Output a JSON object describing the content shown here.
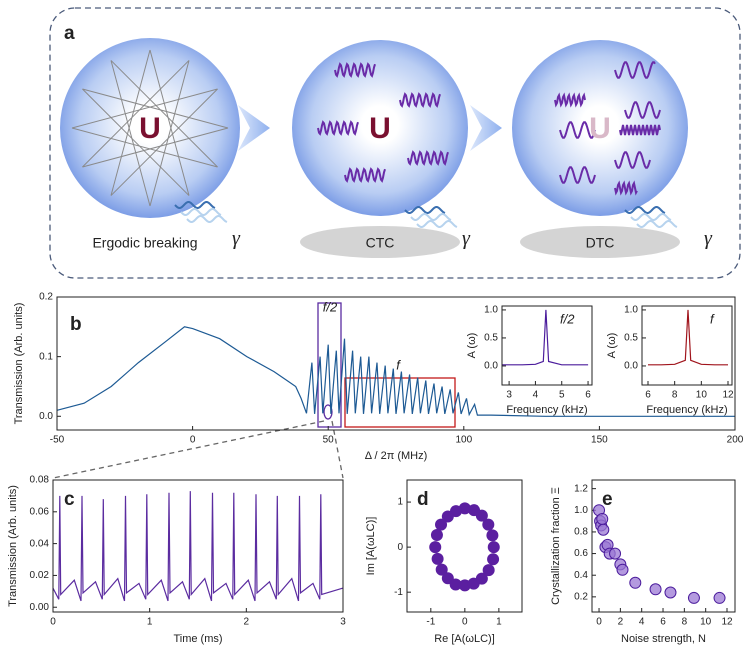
{
  "diagram": {
    "panel": "a",
    "stages": [
      {
        "label": "Ergodic breaking",
        "symbol": "U",
        "rate": "γ"
      },
      {
        "label": "CTC",
        "symbol": "U",
        "rate": "γ"
      },
      {
        "label": "DTC",
        "symbol": "U",
        "rate": "γ"
      }
    ]
  },
  "chart_data": [
    {
      "type": "line",
      "panel": "b",
      "x_label": "Δ / 2π (MHz)",
      "y_label": "Transmission (Arb. units)",
      "annotations": [
        "f/2",
        "f"
      ],
      "xlim": [
        -50,
        200
      ],
      "xticks": [
        -50,
        0,
        50,
        100,
        150,
        200
      ],
      "ylim": [
        -0.023,
        0.2
      ],
      "yticks": [
        {
          "value": 0,
          "label": "0.0"
        },
        {
          "value": 0.1,
          "label": "0.1"
        },
        {
          "value": 0.2,
          "label": "0.2"
        }
      ],
      "series": [
        {
          "color": "#1d5a94",
          "x": [
            -50,
            -40,
            -30,
            -20,
            -10,
            -3,
            0,
            10,
            20,
            30,
            38,
            40,
            42,
            44,
            45,
            47,
            48,
            50,
            51,
            53,
            54,
            56,
            57,
            59,
            60,
            62,
            63,
            65,
            66,
            68,
            69,
            71,
            72,
            74,
            75,
            77,
            78,
            80,
            81,
            83,
            84,
            86,
            87,
            89,
            90,
            92,
            93,
            95,
            96,
            98,
            99,
            101,
            102,
            104,
            105,
            110,
            130,
            160,
            200
          ],
          "values": [
            0.01,
            0.022,
            0.05,
            0.09,
            0.125,
            0.15,
            0.147,
            0.13,
            0.1,
            0.075,
            0.05,
            0.03,
            0.005,
            0.09,
            0.004,
            0.1,
            0.005,
            0.12,
            0.004,
            0.11,
            0.005,
            0.13,
            0.004,
            0.11,
            0.005,
            0.1,
            0.004,
            0.1,
            0.005,
            0.09,
            0.004,
            0.085,
            0.005,
            0.08,
            0.004,
            0.075,
            0.005,
            0.07,
            0.004,
            0.065,
            0.005,
            0.06,
            0.004,
            0.055,
            0.005,
            0.05,
            0.004,
            0.045,
            0.005,
            0.04,
            0.004,
            0.03,
            0.003,
            0.02,
            0.002,
            0.002,
            0.0,
            0.0,
            0.0
          ]
        }
      ]
    },
    {
      "type": "line",
      "panel_annotation": "f/2",
      "x_label": "Frequency (kHz)",
      "y_label": "A (ω)",
      "xlim": [
        2.73,
        6.15
      ],
      "xticks": [
        3,
        4,
        5,
        6
      ],
      "ylim": [
        -0.34,
        1.07
      ],
      "yticks": [
        {
          "value": 0,
          "label": "0.0"
        },
        {
          "value": 0.5,
          "label": "0.5"
        },
        {
          "value": 1,
          "label": "1.0"
        }
      ],
      "series": [
        {
          "color": "#4b1c9c",
          "x": [
            2.73,
            3,
            3.5,
            4,
            4.3,
            4.4,
            4.5,
            5,
            5.5,
            6
          ],
          "values": [
            0.02,
            0.02,
            0.02,
            0.03,
            0.08,
            1.0,
            0.08,
            0.02,
            0.02,
            0.02
          ]
        }
      ]
    },
    {
      "type": "line",
      "panel_annotation": "f",
      "x_label": "Frequency (kHz)",
      "y_label": "A (ω)",
      "xlim": [
        5.55,
        12.3
      ],
      "xticks": [
        6,
        8,
        10,
        12
      ],
      "ylim": [
        -0.34,
        1.07
      ],
      "yticks": [
        {
          "value": 0,
          "label": "0.0"
        },
        {
          "value": 0.5,
          "label": "0.5"
        },
        {
          "value": 1,
          "label": "1.0"
        }
      ],
      "series": [
        {
          "color": "#a0141c",
          "x": [
            6,
            7,
            8,
            8.8,
            9,
            9.2,
            10,
            11,
            12
          ],
          "values": [
            0.02,
            0.02,
            0.03,
            0.1,
            1.0,
            0.1,
            0.03,
            0.02,
            0.02
          ]
        }
      ]
    },
    {
      "type": "line",
      "panel": "c",
      "x_label": "Time (ms)",
      "y_label": "Transmission (Arb. units)",
      "xlim": [
        0,
        3
      ],
      "xticks": [
        0,
        1,
        2,
        3
      ],
      "ylim": [
        -0.003,
        0.08
      ],
      "yticks": [
        {
          "value": 0,
          "label": "0.00"
        },
        {
          "value": 0.02,
          "label": "0.02"
        },
        {
          "value": 0.04,
          "label": "0.04"
        },
        {
          "value": 0.06,
          "label": "0.06"
        },
        {
          "value": 0.08,
          "label": "0.08"
        }
      ],
      "series": [
        {
          "color": "#5b2ca0",
          "x": [
            0,
            0.06,
            0.07,
            0.08,
            0.22,
            0.29,
            0.3,
            0.31,
            0.44,
            0.51,
            0.52,
            0.53,
            0.67,
            0.74,
            0.75,
            0.76,
            0.89,
            0.96,
            0.97,
            0.98,
            1.12,
            1.19,
            1.2,
            1.21,
            1.34,
            1.41,
            1.42,
            1.43,
            1.57,
            1.64,
            1.65,
            1.66,
            1.79,
            1.86,
            1.87,
            1.88,
            2.02,
            2.09,
            2.1,
            2.11,
            2.24,
            2.31,
            2.32,
            2.33,
            2.47,
            2.54,
            2.55,
            2.56,
            2.69,
            2.76,
            2.77,
            2.78,
            3
          ],
          "values": [
            0.012,
            0.005,
            0.07,
            0.008,
            0.017,
            0.004,
            0.07,
            0.009,
            0.016,
            0.005,
            0.068,
            0.008,
            0.018,
            0.004,
            0.07,
            0.009,
            0.015,
            0.005,
            0.071,
            0.008,
            0.017,
            0.004,
            0.072,
            0.009,
            0.016,
            0.005,
            0.073,
            0.008,
            0.018,
            0.004,
            0.072,
            0.009,
            0.015,
            0.005,
            0.072,
            0.008,
            0.017,
            0.004,
            0.071,
            0.009,
            0.016,
            0.005,
            0.07,
            0.008,
            0.018,
            0.004,
            0.07,
            0.009,
            0.015,
            0.005,
            0.071,
            0.008,
            0.012
          ]
        }
      ]
    },
    {
      "type": "scatter",
      "panel": "d",
      "x_label": "Re [A(ωLC)]",
      "y_label": "Im [A(ωLC)]",
      "xlim": [
        -1.7,
        1.68
      ],
      "xticks": [
        -1,
        0,
        1
      ],
      "ylim": [
        -1.44,
        1.49
      ],
      "yticks": [
        -1,
        0,
        1
      ],
      "series": [
        {
          "color": "#5b1fa0",
          "x": [
            0.85,
            0.81,
            0.69,
            0.5,
            0.27,
            0,
            -0.26,
            -0.5,
            -0.7,
            -0.82,
            -0.87,
            -0.8,
            -0.68,
            -0.5,
            -0.27,
            0,
            0.26,
            0.5,
            0.7,
            0.83
          ],
          "values": [
            0,
            0.26,
            0.5,
            0.7,
            0.82,
            0.86,
            0.8,
            0.68,
            0.5,
            0.27,
            0,
            -0.26,
            -0.5,
            -0.69,
            -0.83,
            -0.85,
            -0.81,
            -0.7,
            -0.51,
            -0.27
          ]
        }
      ]
    },
    {
      "type": "scatter",
      "panel": "e",
      "x_label": "Noise strength, N",
      "y_label": "Crystallization fraction Ξ",
      "xlim": [
        -0.66,
        12.75
      ],
      "xticks": [
        0,
        2,
        4,
        6,
        8,
        10,
        12
      ],
      "ylim": [
        0.06,
        1.28
      ],
      "yticks": [
        {
          "value": 0.2,
          "label": "0.2"
        },
        {
          "value": 0.4,
          "label": "0.4"
        },
        {
          "value": 0.6,
          "label": "0.6"
        },
        {
          "value": 0.8,
          "label": "0.8"
        },
        {
          "value": 1.0,
          "label": "1.0"
        },
        {
          "value": 1.2,
          "label": "1.2"
        }
      ],
      "series": [
        {
          "color": "#9b78d4",
          "x": [
            0,
            0.1,
            0.2,
            0.3,
            0.4,
            0.6,
            0.8,
            1.0,
            1.5,
            2.0,
            2.2,
            3.4,
            5.3,
            6.7,
            8.9,
            11.3
          ],
          "values": [
            1.0,
            0.9,
            0.86,
            0.92,
            0.82,
            0.66,
            0.68,
            0.6,
            0.6,
            0.5,
            0.45,
            0.33,
            0.27,
            0.24,
            0.19,
            0.19
          ]
        }
      ]
    }
  ]
}
